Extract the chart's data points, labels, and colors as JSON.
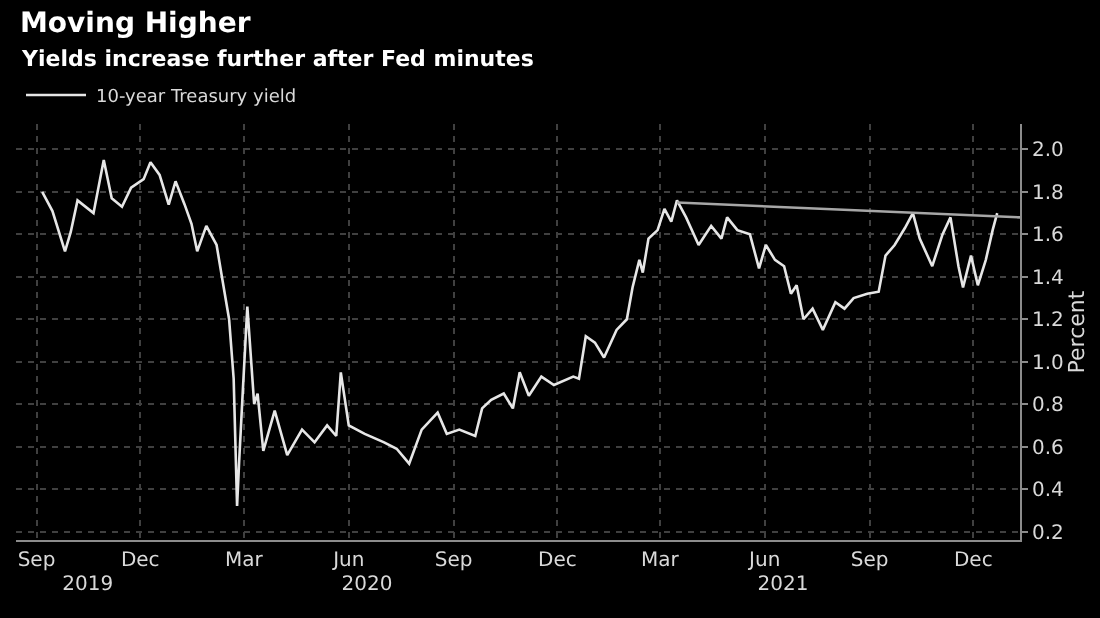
{
  "chart_data": {
    "type": "line",
    "title": "Moving Higher",
    "subtitle": "Yields increase further after Fed minutes",
    "ylabel": "Percent",
    "xlim": [
      "2019-08-28",
      "2022-01-25"
    ],
    "xticks": [
      {
        "value": "2019-09-15",
        "label": "Sep"
      },
      {
        "value": "2019-12-15",
        "label": "Dec"
      },
      {
        "value": "2020-03-15",
        "label": "Mar"
      },
      {
        "value": "2020-06-15",
        "label": "Jun"
      },
      {
        "value": "2020-09-15",
        "label": "Sep"
      },
      {
        "value": "2020-12-15",
        "label": "Dec"
      },
      {
        "value": "2021-03-15",
        "label": "Mar"
      },
      {
        "value": "2021-06-15",
        "label": "Jun"
      },
      {
        "value": "2021-09-15",
        "label": "Sep"
      },
      {
        "value": "2021-12-15",
        "label": "Dec"
      }
    ],
    "x2lim": [
      "2019-08-28",
      "2022-01-25"
    ],
    "x2ticks": [
      {
        "value": "2019-10-30",
        "label": "2019"
      },
      {
        "value": "2020-07-01",
        "label": "2020"
      },
      {
        "value": "2021-07-01",
        "label": "2021"
      }
    ],
    "ylim": [
      0.16,
      2.12
    ],
    "yticks": [
      0.2,
      0.4,
      0.6,
      0.8,
      {
        "value": 1,
        "label": "1.0"
      },
      1.2,
      1.4,
      1.6,
      1.8,
      {
        "value": 2,
        "label": "2.0"
      }
    ],
    "grid": true,
    "legend": "top left",
    "marker": "none",
    "line_style": "solid",
    "series": [
      {
        "name": "10-year Treasury yield",
        "color": "#e6e6e6",
        "x": [
          "2019-09-20",
          "2019-09-29",
          "2019-10-10",
          "2019-10-15",
          "2019-10-21",
          "2019-11-04",
          "2019-11-13",
          "2019-11-20",
          "2019-11-29",
          "2019-12-07",
          "2019-12-18",
          "2019-12-24",
          "2020-01-01",
          "2020-01-09",
          "2020-01-15",
          "2020-01-23",
          "2020-01-29",
          "2020-02-03",
          "2020-02-11",
          "2020-02-20",
          "2020-02-25",
          "2020-03-02",
          "2020-03-06",
          "2020-03-09",
          "2020-03-11",
          "2020-03-14",
          "2020-03-18",
          "2020-03-24",
          "2020-03-27",
          "2020-04-01",
          "2020-04-11",
          "2020-04-22",
          "2020-05-05",
          "2020-05-16",
          "2020-05-27",
          "2020-06-04",
          "2020-06-08",
          "2020-06-15",
          "2020-06-29",
          "2020-07-16",
          "2020-07-27",
          "2020-08-07",
          "2020-08-18",
          "2020-09-01",
          "2020-09-09",
          "2020-09-20",
          "2020-10-04",
          "2020-10-10",
          "2020-10-18",
          "2020-10-29",
          "2020-11-06",
          "2020-11-12",
          "2020-11-20",
          "2020-12-01",
          "2020-12-12",
          "2020-12-29",
          "2021-01-03",
          "2021-01-09",
          "2021-01-17",
          "2021-01-25",
          "2021-02-05",
          "2021-02-14",
          "2021-02-19",
          "2021-02-25",
          "2021-02-28",
          "2021-03-05",
          "2021-03-13",
          "2021-03-19",
          "2021-03-25",
          "2021-03-30",
          "2021-04-07",
          "2021-04-18",
          "2021-04-29",
          "2021-05-08",
          "2021-05-13",
          "2021-05-22",
          "2021-06-02",
          "2021-06-10",
          "2021-06-16",
          "2021-06-24",
          "2021-07-02",
          "2021-07-08",
          "2021-07-13",
          "2021-07-19",
          "2021-07-27",
          "2021-08-05",
          "2021-08-16",
          "2021-08-24",
          "2021-09-01",
          "2021-09-13",
          "2021-09-23",
          "2021-09-29",
          "2021-10-07",
          "2021-10-16",
          "2021-10-23",
          "2021-10-29",
          "2021-11-09",
          "2021-11-18",
          "2021-11-25",
          "2021-12-02",
          "2021-12-06",
          "2021-12-13",
          "2021-12-19",
          "2021-12-26",
          "2022-01-01",
          "2022-01-05"
        ],
        "values": [
          1.8,
          1.71,
          1.52,
          1.61,
          1.76,
          1.7,
          1.95,
          1.77,
          1.73,
          1.82,
          1.86,
          1.94,
          1.88,
          1.74,
          1.85,
          1.74,
          1.65,
          1.52,
          1.64,
          1.55,
          1.39,
          1.2,
          0.92,
          0.32,
          0.55,
          0.86,
          1.26,
          0.8,
          0.85,
          0.58,
          0.77,
          0.56,
          0.68,
          0.62,
          0.7,
          0.65,
          0.95,
          0.7,
          0.66,
          0.62,
          0.59,
          0.52,
          0.68,
          0.76,
          0.66,
          0.68,
          0.65,
          0.78,
          0.82,
          0.85,
          0.78,
          0.95,
          0.84,
          0.93,
          0.89,
          0.93,
          0.92,
          1.12,
          1.09,
          1.02,
          1.15,
          1.2,
          1.35,
          1.48,
          1.42,
          1.58,
          1.62,
          1.72,
          1.66,
          1.76,
          1.68,
          1.55,
          1.64,
          1.58,
          1.68,
          1.62,
          1.6,
          1.44,
          1.55,
          1.48,
          1.45,
          1.32,
          1.36,
          1.2,
          1.25,
          1.15,
          1.28,
          1.25,
          1.3,
          1.32,
          1.33,
          1.5,
          1.55,
          1.63,
          1.7,
          1.58,
          1.45,
          1.6,
          1.68,
          1.45,
          1.35,
          1.5,
          1.36,
          1.48,
          1.62,
          1.7
        ]
      },
      {
        "color": "#a6a6a6",
        "x": [
          "2021-03-30",
          "2022-01-25"
        ],
        "values": [
          1.75,
          1.68
        ]
      }
    ]
  }
}
